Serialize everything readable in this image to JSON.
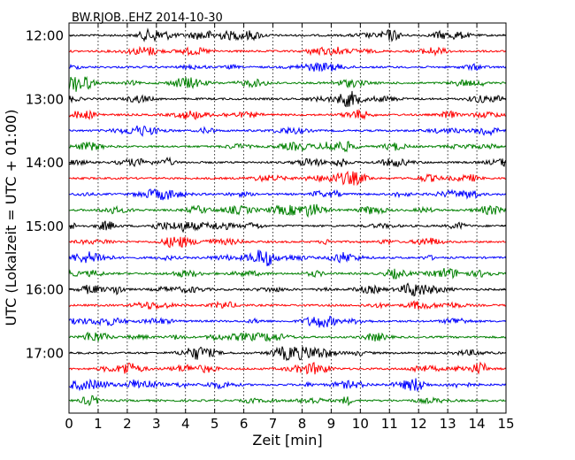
{
  "chart_data": {
    "type": "line",
    "title": "BW.RJOB..EHZ 2014-10-30",
    "xlabel": "Zeit  [min]",
    "ylabel": "UTC (Lokalzeit = UTC + 01:00)",
    "xlim": [
      0,
      15
    ],
    "x_ticks": [
      "0",
      "1",
      "2",
      "3",
      "4",
      "5",
      "6",
      "7",
      "8",
      "9",
      "10",
      "11",
      "12",
      "13",
      "14",
      "15"
    ],
    "y_ticks": [
      "12:00",
      "13:00",
      "14:00",
      "15:00",
      "16:00",
      "17:00"
    ],
    "row_interval_min": 15,
    "row_start_times": [
      "12:00",
      "12:15",
      "12:30",
      "12:45",
      "13:00",
      "13:15",
      "13:30",
      "13:45",
      "14:00",
      "14:15",
      "14:30",
      "14:45",
      "15:00",
      "15:15",
      "15:30",
      "15:45",
      "16:00",
      "16:15",
      "16:30",
      "16:45",
      "17:00",
      "17:15",
      "17:30",
      "17:45"
    ],
    "row_colors": [
      "#000000",
      "#ff0000",
      "#0000ff",
      "#008000"
    ],
    "grid": "vertical dotted"
  }
}
